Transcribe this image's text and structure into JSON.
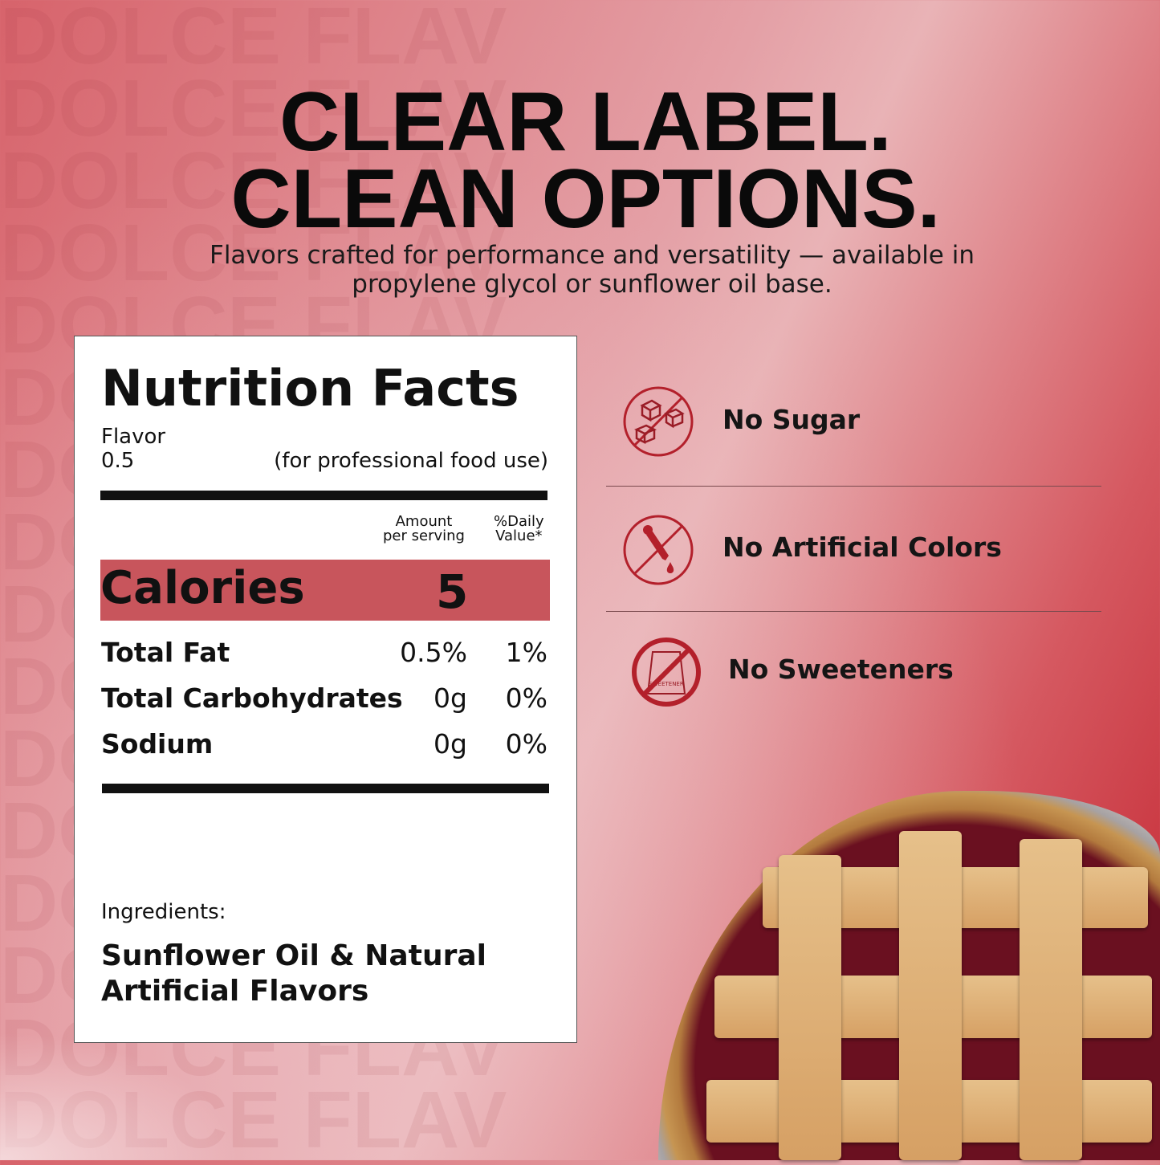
{
  "watermark": "DOLCE FLAV",
  "headline": {
    "line1": "CLEAR LABEL.",
    "line2": "CLEAN OPTIONS."
  },
  "subtitle": {
    "line1": "Flavors crafted for performance and versatility — available in",
    "line2": "propylene glycol or sunflower oil base."
  },
  "nutrition": {
    "title": "Nutrition Facts",
    "flavor_label": "Flavor",
    "flavor_value": "0.5",
    "use_note": "(for professional food use)",
    "col_amount": [
      "Amount",
      "per serving"
    ],
    "col_daily": [
      "%Daily",
      "Value*"
    ],
    "calories_label": "Calories",
    "calories_value": "5",
    "rows": [
      {
        "name": "Total Fat",
        "amount": "0.5%",
        "daily": "1%"
      },
      {
        "name": "Total Carbohydrates",
        "amount": "0g",
        "daily": "0%"
      },
      {
        "name": "Sodium",
        "amount": "0g",
        "daily": "0%"
      }
    ],
    "ingredients_label": "Ingredients:",
    "ingredients": [
      "Sunflower Oil & Natural",
      "Artificial Flavors"
    ]
  },
  "features": [
    {
      "label": "No Sugar",
      "icon": "no-sugar-cubes-icon"
    },
    {
      "label": "No Artificial Colors",
      "icon": "no-dropper-icon"
    },
    {
      "label": "No Sweeteners",
      "icon": "no-sweetener-icon",
      "icon_text": "SWEETENER"
    }
  ],
  "colors": {
    "accent": "#c8555c",
    "icon": "#b3202b"
  }
}
